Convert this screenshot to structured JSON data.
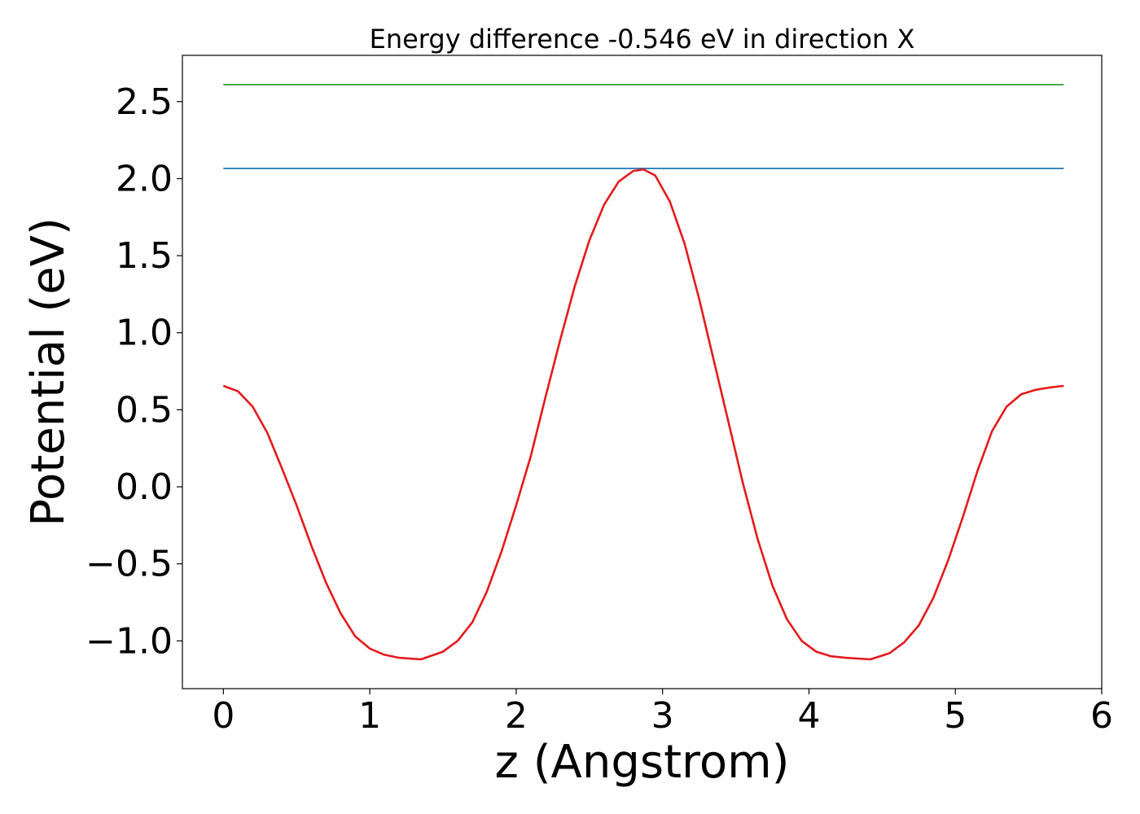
{
  "chart_data": {
    "type": "line",
    "title": "Energy difference -0.546 eV in direction X",
    "xlabel": "z (Angstrom)",
    "ylabel": "Potential (eV)",
    "xlim": [
      -0.28,
      6.0
    ],
    "ylim": [
      -1.31,
      2.8
    ],
    "x_ticks": [
      0,
      1,
      2,
      3,
      4,
      5,
      6
    ],
    "x_tick_labels": [
      "0",
      "1",
      "2",
      "3",
      "4",
      "5",
      "6"
    ],
    "y_ticks": [
      -1.0,
      -0.5,
      0.0,
      0.5,
      1.0,
      1.5,
      2.0,
      2.5
    ],
    "y_tick_labels": [
      "−1.0",
      "−0.5",
      "0.0",
      "0.5",
      "1.0",
      "1.5",
      "2.0",
      "2.5"
    ],
    "grid": false,
    "series": [
      {
        "color": "#2ca02c",
        "x": [
          0,
          5.74
        ],
        "y": [
          2.61,
          2.61
        ]
      },
      {
        "color": "#1f77b4",
        "x": [
          0,
          5.74
        ],
        "y": [
          2.066,
          2.066
        ]
      },
      {
        "color": "#e41a1c",
        "x": [
          0,
          0.1,
          0.2,
          0.3,
          0.4,
          0.5,
          0.6,
          0.7,
          0.8,
          0.9,
          1.0,
          1.1,
          1.2,
          1.35,
          1.5,
          1.6,
          1.7,
          1.8,
          1.9,
          2.0,
          2.1,
          2.2,
          2.3,
          2.4,
          2.5,
          2.6,
          2.7,
          2.8,
          2.87,
          2.95,
          3.05,
          3.15,
          3.25,
          3.35,
          3.45,
          3.55,
          3.65,
          3.75,
          3.85,
          3.95,
          4.05,
          4.15,
          4.25,
          4.42,
          4.55,
          4.65,
          4.75,
          4.85,
          4.95,
          5.05,
          5.15,
          5.25,
          5.35,
          5.45,
          5.55,
          5.65,
          5.74
        ],
        "y": [
          0.655,
          0.62,
          0.52,
          0.35,
          0.12,
          -0.12,
          -0.38,
          -0.62,
          -0.82,
          -0.97,
          -1.05,
          -1.09,
          -1.11,
          -1.12,
          -1.07,
          -1.0,
          -0.88,
          -0.68,
          -0.42,
          -0.12,
          0.2,
          0.58,
          0.95,
          1.3,
          1.6,
          1.83,
          1.98,
          2.05,
          2.06,
          2.02,
          1.85,
          1.58,
          1.22,
          0.82,
          0.42,
          0.02,
          -0.34,
          -0.64,
          -0.86,
          -1.0,
          -1.07,
          -1.1,
          -1.11,
          -1.12,
          -1.08,
          -1.01,
          -0.9,
          -0.72,
          -0.48,
          -0.2,
          0.1,
          0.36,
          0.52,
          0.6,
          0.63,
          0.645,
          0.655
        ]
      }
    ]
  }
}
